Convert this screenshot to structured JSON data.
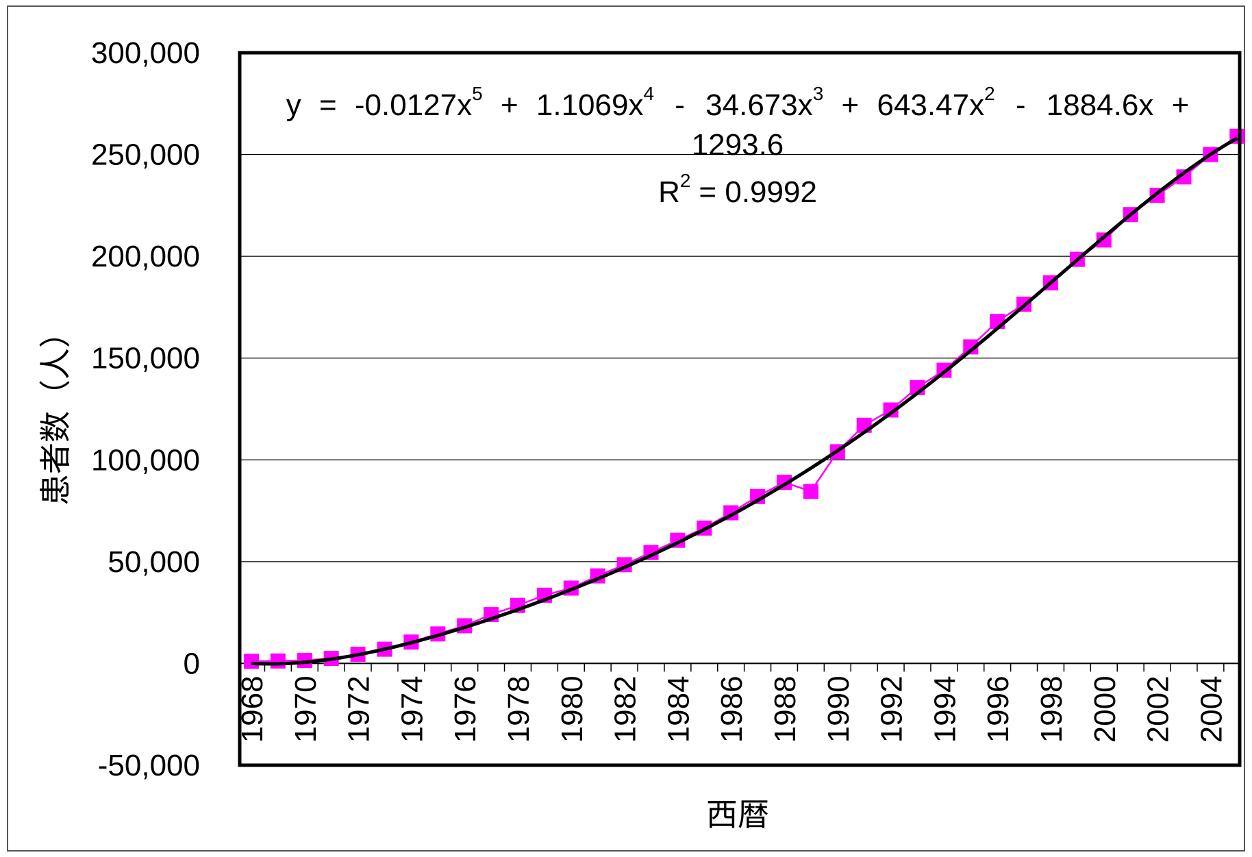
{
  "chart_data": {
    "type": "line",
    "title": "",
    "xlabel": "西暦",
    "ylabel": "患者数（人）",
    "ylim": [
      -50000,
      300000
    ],
    "yticks": [
      -50000,
      0,
      50000,
      100000,
      150000,
      200000,
      250000,
      300000
    ],
    "ytick_labels": [
      "-50,000",
      "0",
      "50,000",
      "100,000",
      "150,000",
      "200,000",
      "250,000",
      "300,000"
    ],
    "xtick_labels": [
      "1968",
      "1970",
      "1972",
      "1974",
      "1976",
      "1978",
      "1980",
      "1982",
      "1984",
      "1986",
      "1988",
      "1990",
      "1992",
      "1994",
      "1996",
      "1998",
      "2000",
      "2002",
      "2004"
    ],
    "x": [
      1968,
      1969,
      1970,
      1971,
      1972,
      1973,
      1974,
      1975,
      1976,
      1977,
      1978,
      1979,
      1980,
      1981,
      1982,
      1983,
      1984,
      1985,
      1986,
      1987,
      1988,
      1989,
      1990,
      1991,
      1992,
      1993,
      1994,
      1995,
      1996,
      1997,
      1998,
      1999,
      2000,
      2001,
      2002,
      2003,
      2004,
      2005
    ],
    "grid": true,
    "legend": "none",
    "series": [
      {
        "role": "observed",
        "color": "#ff00ff",
        "marker": "square",
        "values": [
          1000,
          1200,
          1500,
          2500,
          4500,
          7000,
          10500,
          14500,
          18500,
          24000,
          28500,
          33500,
          37000,
          43000,
          48500,
          54500,
          60500,
          66500,
          74000,
          82000,
          89000,
          84500,
          104000,
          117000,
          124500,
          135500,
          144000,
          155500,
          168000,
          176500,
          187000,
          198500,
          208000,
          220500,
          230000,
          239000,
          250000,
          259000
        ]
      },
      {
        "role": "polynomial-trendline",
        "color": "#000000",
        "coefficients": [
          -0.0127,
          1.1069,
          -34.673,
          643.47,
          -1884.6,
          1293.6
        ]
      }
    ],
    "annotation": {
      "equation_line1": {
        "y": "y",
        "eq": "=",
        "t1": "-0.0127x",
        "e1": "5",
        "op1": "+",
        "t2": "1.1069x",
        "e2": "4",
        "op2": "-",
        "t3": "34.673x",
        "e3": "3",
        "op3": "+",
        "t4": "643.47x",
        "e4": "2",
        "op4": "-",
        "t5": "1884.6x",
        "op5": "+"
      },
      "equation_line2": "1293.6",
      "r2_label": "R",
      "r2_exp": "2",
      "r2_value": "= 0.9992"
    }
  }
}
